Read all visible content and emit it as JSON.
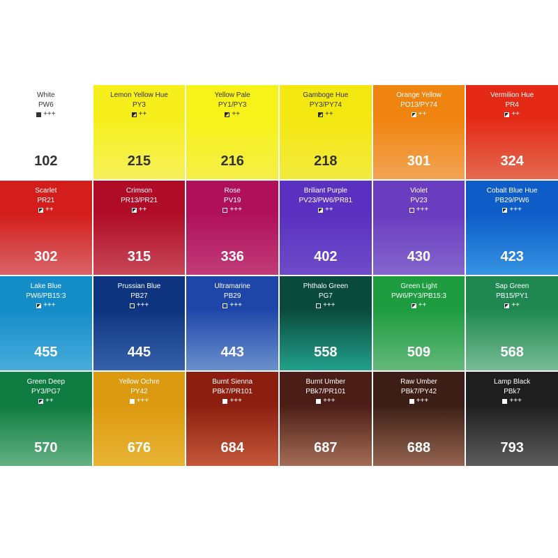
{
  "swatches": [
    {
      "name": "White",
      "pigment": "PW6",
      "opacity": "opaque",
      "rating": "+++",
      "number": "102",
      "colors": [
        "#ffffff",
        "#ffffff"
      ],
      "dark_text": true
    },
    {
      "name": "Lemon Yellow Hue",
      "pigment": "PY3",
      "opacity": "semi",
      "rating": "++",
      "number": "215",
      "colors": [
        "#f6ef1c",
        "#f5f05a"
      ],
      "dark_text": true
    },
    {
      "name": "Yellow Pale",
      "pigment": "PY1/PY3",
      "opacity": "semi",
      "rating": "++",
      "number": "216",
      "colors": [
        "#f7f318",
        "#f4ee48"
      ],
      "dark_text": true
    },
    {
      "name": "Gamboge Hue",
      "pigment": "PY3/PY74",
      "opacity": "semi",
      "rating": "++",
      "number": "218",
      "colors": [
        "#f3e810",
        "#f3ea40"
      ],
      "dark_text": true
    },
    {
      "name": "Orange Yellow",
      "pigment": "PO13/PY74",
      "opacity": "semi",
      "rating": "++",
      "number": "301",
      "colors": [
        "#f08410",
        "#f2a455"
      ],
      "dark_text": false
    },
    {
      "name": "Vermilion Hue",
      "pigment": "PR4",
      "opacity": "semi",
      "rating": "++",
      "number": "324",
      "colors": [
        "#e42a16",
        "#e46a50"
      ],
      "dark_text": false
    },
    {
      "name": "Scarlet",
      "pigment": "PR21",
      "opacity": "semi",
      "rating": "++",
      "number": "302",
      "colors": [
        "#d41e1c",
        "#d86468"
      ],
      "dark_text": false
    },
    {
      "name": "Crimson",
      "pigment": "PR13/PR21",
      "opacity": "semi",
      "rating": "++",
      "number": "315",
      "colors": [
        "#b00c28",
        "#c84858"
      ],
      "dark_text": false
    },
    {
      "name": "Rose",
      "pigment": "PV19",
      "opacity": "transparent",
      "rating": "+++",
      "number": "336",
      "colors": [
        "#b0105a",
        "#c03c78"
      ],
      "dark_text": false
    },
    {
      "name": "Briliant Purple",
      "pigment": "PV23/PW6/PR81",
      "opacity": "semi",
      "rating": "++",
      "number": "402",
      "colors": [
        "#5a30c0",
        "#6e4cc8"
      ],
      "dark_text": false
    },
    {
      "name": "Violet",
      "pigment": "PV23",
      "opacity": "transparent",
      "rating": "+++",
      "number": "430",
      "colors": [
        "#6a3cc0",
        "#8466cc"
      ],
      "dark_text": false
    },
    {
      "name": "Cobalt Blue Hue",
      "pigment": "PB29/PW6",
      "opacity": "semi",
      "rating": "+++",
      "number": "423",
      "colors": [
        "#0e5cc8",
        "#3694e2"
      ],
      "dark_text": false
    },
    {
      "name": "Lake Blue",
      "pigment": "PW6/PB15:3",
      "opacity": "semi",
      "rating": "+++",
      "number": "455",
      "colors": [
        "#148cc8",
        "#48acdc"
      ],
      "dark_text": false
    },
    {
      "name": "Prussian Blue",
      "pigment": "PB27",
      "opacity": "transparent",
      "rating": "+++",
      "number": "445",
      "colors": [
        "#0e3480",
        "#3662aa"
      ],
      "dark_text": false
    },
    {
      "name": "Ultramarine",
      "pigment": "PB29",
      "opacity": "transparent",
      "rating": "+++",
      "number": "443",
      "colors": [
        "#1e46a8",
        "#6a90cc"
      ],
      "dark_text": false
    },
    {
      "name": "Phthalo Green",
      "pigment": "PG7",
      "opacity": "transparent",
      "rating": "+++",
      "number": "558",
      "colors": [
        "#0a4a3c",
        "#22a08a"
      ],
      "dark_text": false
    },
    {
      "name": "Green Light",
      "pigment": "PW6/PY3/PB15:3",
      "opacity": "semi",
      "rating": "++",
      "number": "509",
      "colors": [
        "#1e9c40",
        "#64b87c"
      ],
      "dark_text": false
    },
    {
      "name": "Sap Green",
      "pigment": "PB15/PY1",
      "opacity": "semi",
      "rating": "++",
      "number": "568",
      "colors": [
        "#1e8850",
        "#78bc96"
      ],
      "dark_text": false
    },
    {
      "name": "Green Deep",
      "pigment": "PY3/PG7",
      "opacity": "semi",
      "rating": "++",
      "number": "570",
      "colors": [
        "#0e7c40",
        "#64b084"
      ],
      "dark_text": false
    },
    {
      "name": "Yellow Ochre",
      "pigment": "PY42",
      "opacity": "opaque",
      "rating": "+++",
      "number": "676",
      "colors": [
        "#dc9a10",
        "#e8b436"
      ],
      "dark_text": false
    },
    {
      "name": "Burnt Sienna",
      "pigment": "PBk7/PR101",
      "opacity": "opaque",
      "rating": "+++",
      "number": "684",
      "colors": [
        "#8c1e10",
        "#c4583a"
      ],
      "dark_text": false
    },
    {
      "name": "Burnt Umber",
      "pigment": "PBk7/PR101",
      "opacity": "opaque",
      "rating": "+++",
      "number": "687",
      "colors": [
        "#4a1e16",
        "#a46c56"
      ],
      "dark_text": false
    },
    {
      "name": "Raw Umber",
      "pigment": "PBk7/PY42",
      "opacity": "opaque",
      "rating": "+++",
      "number": "688",
      "colors": [
        "#3c1e16",
        "#946450"
      ],
      "dark_text": false
    },
    {
      "name": "Lamp Black",
      "pigment": "PBk7",
      "opacity": "opaque",
      "rating": "+++",
      "number": "793",
      "colors": [
        "#1e1e1e",
        "#5c5c5c"
      ],
      "dark_text": false
    }
  ]
}
